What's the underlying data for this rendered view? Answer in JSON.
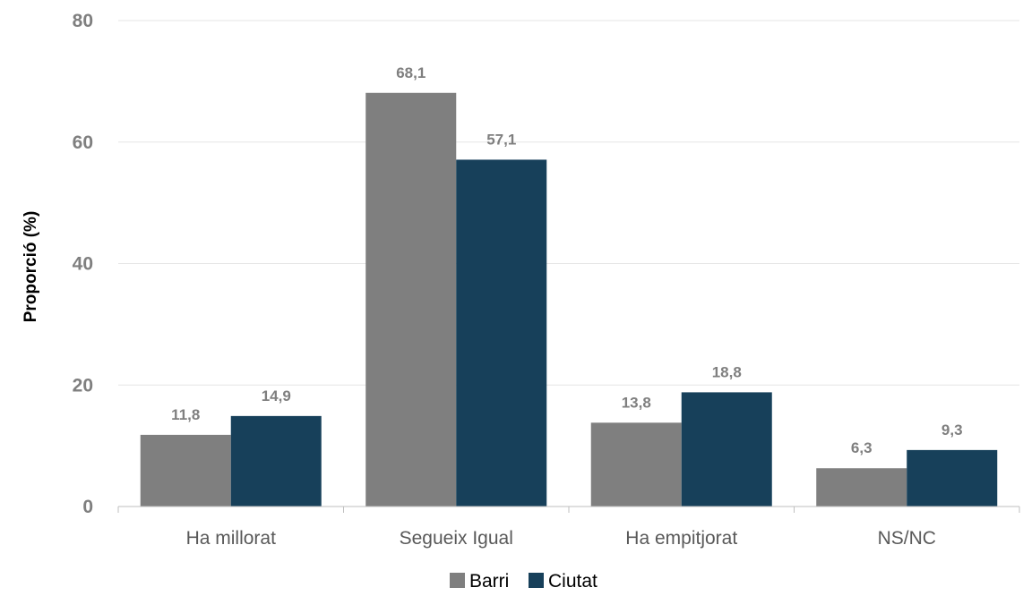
{
  "chart_data": {
    "type": "bar",
    "categories": [
      "Ha millorat",
      "Segueix Igual",
      "Ha empitjorat",
      "NS/NC"
    ],
    "series": [
      {
        "name": "Barri",
        "values": [
          11.8,
          68.1,
          13.8,
          6.3
        ],
        "labels": [
          "11,8",
          "68,1",
          "13,8",
          "6,3"
        ],
        "color": "#7f7f7f"
      },
      {
        "name": "Ciutat",
        "values": [
          14.9,
          57.1,
          18.8,
          9.3
        ],
        "labels": [
          "14,9",
          "57,1",
          "18,8",
          "9,3"
        ],
        "color": "#17405a"
      }
    ],
    "ylabel": "Proporció (%)",
    "xlabel": "",
    "ylim": [
      0,
      80
    ],
    "yticks": [
      "0",
      "20",
      "40",
      "60",
      "80"
    ],
    "grid": true,
    "legend_position": "bottom"
  }
}
